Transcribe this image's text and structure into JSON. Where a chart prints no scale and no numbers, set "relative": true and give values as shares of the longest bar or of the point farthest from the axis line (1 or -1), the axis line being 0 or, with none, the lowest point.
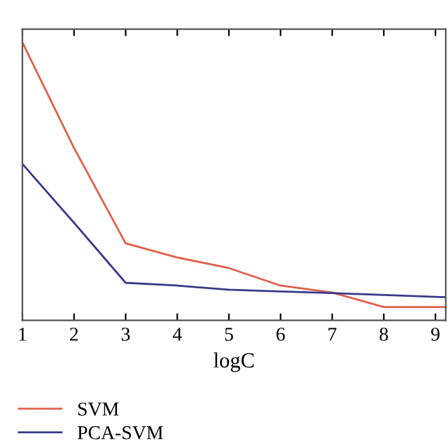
{
  "chart_data": {
    "type": "line",
    "xlabel": "logC",
    "relative": true,
    "tick_labels": "x",
    "legend": "bottom",
    "grid": false,
    "xlim": [
      1,
      9.2
    ],
    "xticks": [
      1,
      2,
      3,
      4,
      5,
      6,
      7,
      8,
      9
    ],
    "x": [
      1,
      2,
      3,
      4,
      5,
      6,
      7,
      8,
      9.2
    ],
    "series": [
      {
        "name": "SVM",
        "color": "#e0604a",
        "values": [
          1.0,
          0.62,
          0.277,
          0.226,
          0.188,
          0.125,
          0.1,
          0.048,
          0.048
        ]
      },
      {
        "name": "PCA-SVM",
        "color": "#3a3a8c",
        "values": [
          0.5625,
          0.351,
          0.135,
          0.125,
          0.11,
          0.104,
          0.098,
          0.091,
          0.083
        ]
      }
    ]
  }
}
